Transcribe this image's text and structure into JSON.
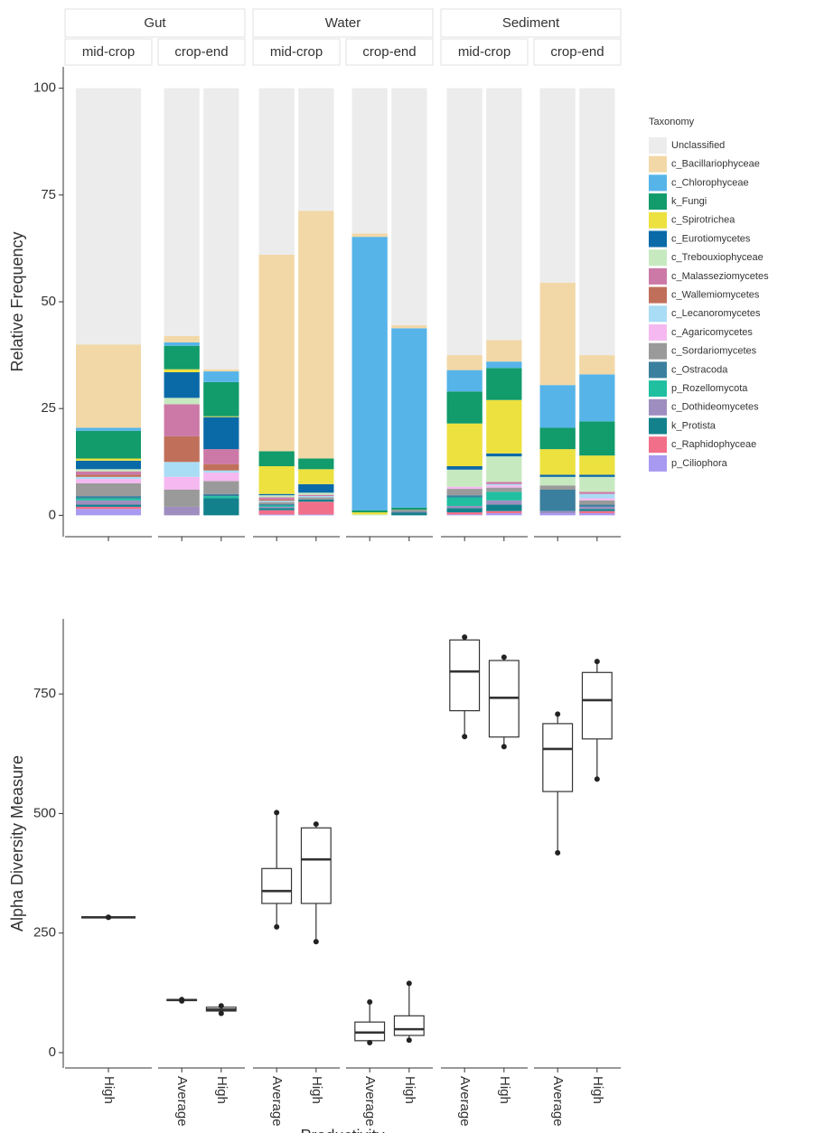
{
  "chart_data": [
    {
      "type": "stacked-bar",
      "y_label": "Relative Frequency",
      "ylim": [
        -5,
        105
      ],
      "yticks": [
        0,
        25,
        50,
        75,
        100
      ],
      "legend_title": "Taxonomy",
      "facets": [
        {
          "label": "Gut",
          "panels": [
            {
              "label": "mid-crop",
              "categories": [
                null
              ]
            },
            {
              "label": "crop-end",
              "categories": [
                null,
                null
              ]
            }
          ]
        },
        {
          "label": "Water",
          "panels": [
            {
              "label": "mid-crop",
              "categories": [
                null,
                null
              ]
            },
            {
              "label": "crop-end",
              "categories": [
                null,
                null
              ]
            }
          ]
        },
        {
          "label": "Sediment",
          "panels": [
            {
              "label": "mid-crop",
              "categories": [
                null,
                null
              ]
            },
            {
              "label": "crop-end",
              "categories": [
                null,
                null
              ]
            }
          ]
        }
      ],
      "series": [
        {
          "name": "Unclassified",
          "color": "#ececec",
          "values": [
            60,
            58,
            65.8,
            39,
            28.7,
            34,
            55.5,
            62.5,
            59,
            45.5,
            62.5
          ]
        },
        {
          "name": "c_Bacillariophyceae",
          "color": "#f2d8a7",
          "values": [
            19.5,
            1.5,
            0.5,
            46,
            58,
            0.8,
            0.7,
            3.5,
            5,
            24,
            4.5
          ]
        },
        {
          "name": "c_Chlorophyceae",
          "color": "#56b4e9",
          "values": [
            0.7,
            0.8,
            2.5,
            0,
            0,
            64,
            42,
            5,
            1.5,
            10,
            11
          ]
        },
        {
          "name": "k_Fungi",
          "color": "#129b6b",
          "values": [
            6.5,
            5.5,
            8,
            3.5,
            2.5,
            0.5,
            0.5,
            7.5,
            7.5,
            5,
            8
          ]
        },
        {
          "name": "c_Spirotrichea",
          "color": "#ece13f",
          "values": [
            0.5,
            0.7,
            0.2,
            6.5,
            3.5,
            0.5,
            0,
            10,
            12.5,
            6,
            4.5
          ]
        },
        {
          "name": "c_Eurotiomycetes",
          "color": "#0a6aa8",
          "values": [
            2,
            6,
            7.5,
            0.3,
            2,
            0,
            0,
            0.8,
            0.7,
            0.5,
            0.5
          ]
        },
        {
          "name": "c_Trebouxiophyceae",
          "color": "#c7e9c0",
          "values": [
            0.5,
            1.5,
            0,
            0.5,
            0.5,
            0.2,
            0,
            4,
            6,
            2,
            3.5
          ]
        },
        {
          "name": "c_Malasseziomycetes",
          "color": "#cc79a7",
          "values": [
            0.8,
            7.5,
            3.5,
            0.5,
            0.3,
            0,
            0,
            0,
            0.5,
            0,
            0.5
          ]
        },
        {
          "name": "c_Wallemiomycetes",
          "color": "#c0705a",
          "values": [
            0.5,
            6,
            1.5,
            0.3,
            0,
            0,
            0,
            0,
            0,
            0,
            0
          ]
        },
        {
          "name": "c_Lecanoromycetes",
          "color": "#a9dcf5",
          "values": [
            0.5,
            3.5,
            0.5,
            0.3,
            0.3,
            0,
            0,
            0,
            0.3,
            0,
            1
          ]
        },
        {
          "name": "c_Agaricomycetes",
          "color": "#f5b8f0",
          "values": [
            1,
            3,
            2,
            0,
            0,
            0,
            0,
            0.5,
            0.5,
            0,
            0.5
          ]
        },
        {
          "name": "c_Sordariomycetes",
          "color": "#9a9a9a",
          "values": [
            3,
            4,
            3,
            0.5,
            0.5,
            0,
            0.5,
            1.5,
            1,
            1,
            1
          ]
        },
        {
          "name": "c_Ostracoda",
          "color": "#3b7f9e",
          "values": [
            0.5,
            0,
            0.5,
            0.3,
            0,
            0,
            0.3,
            0.5,
            0,
            5,
            0.5
          ]
        },
        {
          "name": "p_Rozellomycota",
          "color": "#1fbfa0",
          "values": [
            0.5,
            0,
            0.5,
            0.3,
            0,
            0,
            0,
            2,
            2,
            0,
            0
          ]
        },
        {
          "name": "c_Dothideomycetes",
          "color": "#9e8ec0",
          "values": [
            1,
            2,
            0,
            0.3,
            0,
            0,
            0,
            0.5,
            1,
            0.5,
            0.5
          ]
        },
        {
          "name": "k_Protista",
          "color": "#12818c",
          "values": [
            0.5,
            0,
            4,
            0.5,
            0.5,
            0,
            0.5,
            1,
            1.5,
            0,
            0.5
          ]
        },
        {
          "name": "c_Raphidophyceae",
          "color": "#f26f8a",
          "values": [
            0.5,
            0,
            0,
            1,
            3,
            0,
            0,
            0.5,
            0.5,
            0,
            0.5
          ]
        },
        {
          "name": "p_Ciliophora",
          "color": "#a89af0",
          "values": [
            1.5,
            0,
            0,
            0.2,
            0.2,
            0,
            0,
            0.2,
            0.5,
            0.5,
            0.5
          ]
        }
      ]
    },
    {
      "type": "box",
      "y_label": "Alpha Diversity Measure",
      "x_label": "Productivity",
      "ylim": [
        -32,
        907
      ],
      "yticks": [
        0,
        250,
        500,
        750
      ],
      "facets": [
        {
          "panels": [
            {
              "categories": [
                "High"
              ]
            },
            {
              "categories": [
                "Average",
                "High"
              ]
            }
          ]
        },
        {
          "panels": [
            {
              "categories": [
                "Average",
                "High"
              ]
            },
            {
              "categories": [
                "Average",
                "High"
              ]
            }
          ]
        },
        {
          "panels": [
            {
              "categories": [
                "Average",
                "High"
              ]
            },
            {
              "categories": [
                "Average",
                "High"
              ]
            }
          ]
        }
      ],
      "boxes": [
        {
          "min": 283,
          "q1": 283,
          "median": 283,
          "q3": 283,
          "max": 283
        },
        {
          "min": 108,
          "q1": 109,
          "median": 110,
          "q3": 111,
          "max": 111
        },
        {
          "min": 82,
          "q1": 87,
          "median": 90,
          "q3": 95,
          "max": 98
        },
        {
          "min": 263,
          "q1": 312,
          "median": 338,
          "q3": 385,
          "max": 502
        },
        {
          "min": 232,
          "q1": 312,
          "median": 404,
          "q3": 470,
          "max": 478
        },
        {
          "min": 21,
          "q1": 25,
          "median": 42,
          "q3": 64,
          "max": 106
        },
        {
          "min": 26,
          "q1": 36,
          "median": 49,
          "q3": 77,
          "max": 145
        },
        {
          "min": 661,
          "q1": 715,
          "median": 797,
          "q3": 863,
          "max": 869
        },
        {
          "min": 640,
          "q1": 660,
          "median": 742,
          "q3": 820,
          "max": 827
        },
        {
          "min": 418,
          "q1": 546,
          "median": 635,
          "q3": 688,
          "max": 708
        },
        {
          "min": 572,
          "q1": 656,
          "median": 737,
          "q3": 795,
          "max": 818
        }
      ]
    }
  ]
}
